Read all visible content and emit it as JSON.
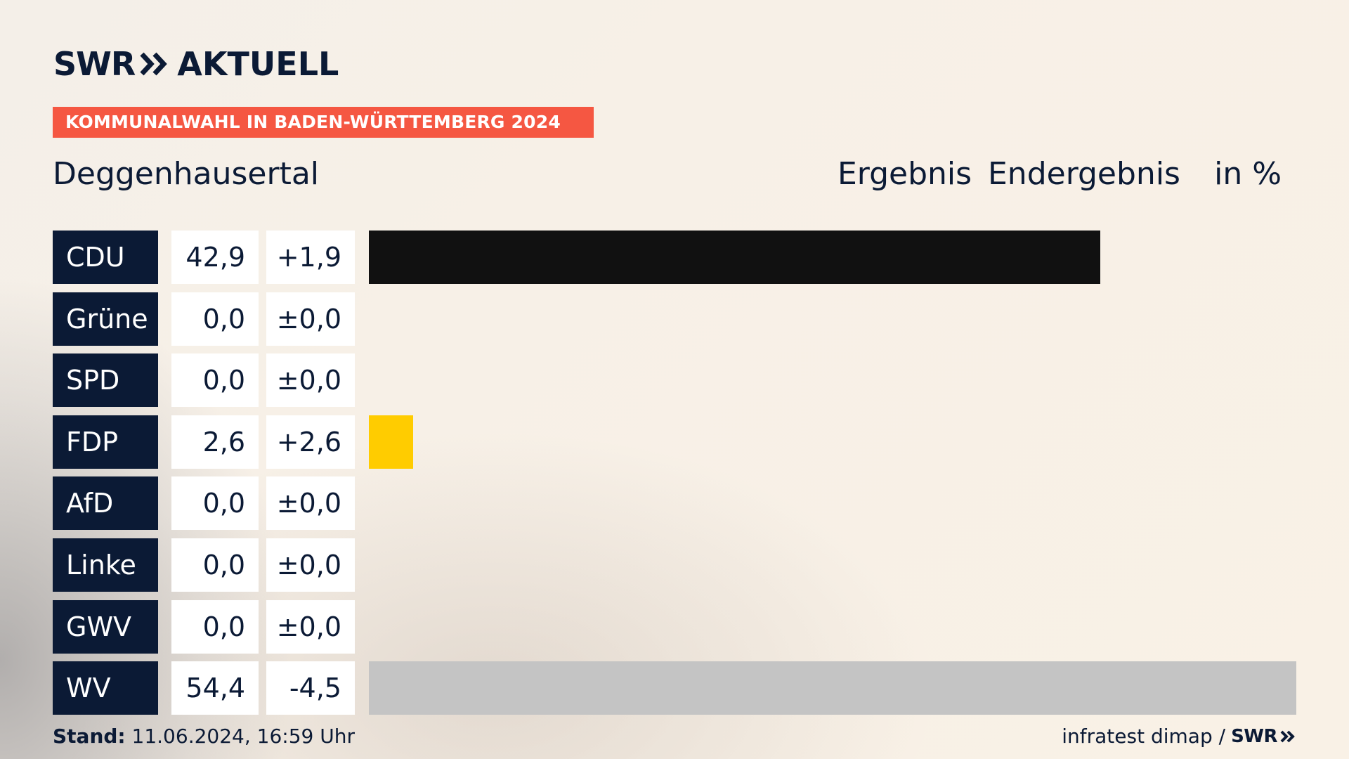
{
  "brand": {
    "swr": "SWR",
    "aktuell": "AKTUELL"
  },
  "banner": "KOMMUNALWAHL IN BADEN-WÜRTTEMBERG 2024",
  "place": "Deggenhausertal",
  "columns": {
    "ergebnis": "Ergebnis",
    "endergebnis": "Endergebnis",
    "unit": "in %"
  },
  "rows": [
    {
      "party": "CDU",
      "value_label": "42,9",
      "diff_label": "+1,9"
    },
    {
      "party": "Grüne",
      "value_label": "0,0",
      "diff_label": "±0,0"
    },
    {
      "party": "SPD",
      "value_label": "0,0",
      "diff_label": "±0,0"
    },
    {
      "party": "FDP",
      "value_label": "2,6",
      "diff_label": "+2,6"
    },
    {
      "party": "AfD",
      "value_label": "0,0",
      "diff_label": "±0,0"
    },
    {
      "party": "Linke",
      "value_label": "0,0",
      "diff_label": "±0,0"
    },
    {
      "party": "GWV",
      "value_label": "0,0",
      "diff_label": "±0,0"
    },
    {
      "party": "WV",
      "value_label": "54,4",
      "diff_label": "-4,5"
    }
  ],
  "chart_data": {
    "type": "bar",
    "title": "Deggenhausertal",
    "subtitle": "KOMMUNALWAHL IN BADEN-WÜRTTEMBERG 2024",
    "categories": [
      "CDU",
      "Grüne",
      "SPD",
      "FDP",
      "AfD",
      "Linke",
      "GWV",
      "WV"
    ],
    "series": [
      {
        "values": [
          42.9,
          0.0,
          0.0,
          2.6,
          0.0,
          0.0,
          0.0,
          54.4
        ]
      }
    ],
    "diffs": [
      1.9,
      0.0,
      0.0,
      2.6,
      0.0,
      0.0,
      0.0,
      -4.5
    ],
    "colors": [
      "#111111",
      "#46962b",
      "#e3000f",
      "#ffcc00",
      "#009ee0",
      "#be3075",
      "#888888",
      "#c4c4c4"
    ],
    "ylabel": "in %",
    "ylim": [
      0,
      54.4
    ],
    "grid": false,
    "legend": "none"
  },
  "footer": {
    "stand_label": "Stand:",
    "stand_value": "11.06.2024, 16:59 Uhr",
    "source": "infratest dimap /",
    "logo": "SWR"
  }
}
